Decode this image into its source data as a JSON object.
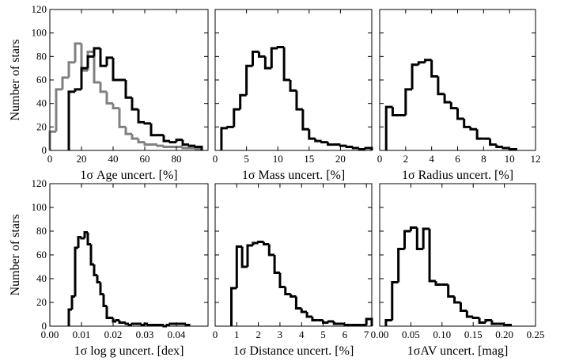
{
  "chart_data": [
    {
      "type": "histogram",
      "ylabel": "Number of stars",
      "xlabel": "1σ Age uncert. [%]",
      "xlim": [
        0,
        100
      ],
      "xticks": [
        0,
        20,
        40,
        60,
        80
      ],
      "ylim": [
        0,
        120
      ],
      "yticks": [
        0,
        20,
        40,
        60,
        80,
        100,
        120
      ],
      "ytick_labels": true,
      "series": [
        {
          "color": "#808080",
          "bins": [
            0,
            4,
            8,
            12,
            16,
            20,
            24,
            28,
            32,
            36,
            40,
            44,
            48,
            52,
            56,
            60,
            64,
            68,
            72,
            76,
            80,
            84,
            88,
            92,
            96
          ],
          "values": [
            16,
            52,
            62,
            75,
            91,
            68,
            84,
            58,
            50,
            40,
            36,
            20,
            14,
            10,
            7,
            5,
            5,
            4,
            3,
            3,
            3,
            2,
            2,
            1
          ]
        },
        {
          "color": "#000000",
          "bins": [
            12,
            16,
            20,
            24,
            28,
            32,
            36,
            40,
            44,
            48,
            52,
            56,
            60,
            64,
            68,
            72,
            76,
            80,
            84,
            88,
            92,
            96
          ],
          "values": [
            50,
            52,
            70,
            80,
            87,
            72,
            79,
            60,
            60,
            45,
            35,
            24,
            23,
            13,
            13,
            8,
            7,
            9,
            5,
            4,
            3
          ]
        }
      ]
    },
    {
      "type": "histogram",
      "xlabel": "1σ Mass uncert. [%]",
      "xlim": [
        0,
        25
      ],
      "xticks": [
        0,
        5,
        10,
        15,
        20
      ],
      "ylim": [
        0,
        120
      ],
      "yticks": [
        0,
        20,
        40,
        60,
        80,
        100,
        120
      ],
      "ytick_labels": false,
      "series": [
        {
          "color": "#000000",
          "bins": [
            1,
            2,
            3,
            4,
            5,
            6,
            7,
            8,
            9,
            10,
            11,
            12,
            13,
            14,
            15,
            16,
            17,
            18,
            19,
            20,
            21,
            22,
            23,
            24,
            25
          ],
          "values": [
            19,
            20,
            35,
            47,
            72,
            84,
            80,
            70,
            87,
            88,
            60,
            51,
            35,
            18,
            10,
            8,
            7,
            5,
            5,
            4,
            3,
            2,
            1,
            2
          ]
        }
      ]
    },
    {
      "type": "histogram",
      "xlabel": "1σ Radius uncert. [%]",
      "xlim": [
        0,
        12
      ],
      "xticks": [
        0,
        2,
        4,
        6,
        8,
        10,
        12
      ],
      "ylim": [
        0,
        120
      ],
      "yticks": [
        0,
        20,
        40,
        60,
        80,
        100,
        120
      ],
      "ytick_labels": false,
      "series": [
        {
          "color": "#000000",
          "bins": [
            0.5,
            1,
            1.5,
            2,
            2.5,
            3,
            3.5,
            4,
            4.5,
            5,
            5.5,
            6,
            6.5,
            7,
            7.5,
            8,
            8.5,
            9,
            9.5,
            10,
            10.5
          ],
          "values": [
            37,
            30,
            30,
            52,
            73,
            75,
            77,
            63,
            48,
            41,
            36,
            27,
            20,
            18,
            10,
            10,
            5,
            3,
            2,
            1
          ]
        }
      ]
    },
    {
      "type": "histogram",
      "ylabel": "Number of stars",
      "xlabel": "1σ log g uncert. [dex]",
      "xlim": [
        0,
        0.05
      ],
      "xticks": [
        {
          "value": 0,
          "label": "0.00"
        },
        {
          "value": 0.01,
          "label": "0.01"
        },
        {
          "value": 0.02,
          "label": "0.02"
        },
        {
          "value": 0.03,
          "label": "0.03"
        },
        {
          "value": 0.04,
          "label": "0.04"
        }
      ],
      "ylim": [
        0,
        120
      ],
      "yticks": [
        0,
        20,
        40,
        60,
        80,
        100,
        120
      ],
      "ytick_labels": true,
      "series": [
        {
          "color": "#000000",
          "bins": [
            0.006,
            0.007,
            0.008,
            0.009,
            0.01,
            0.011,
            0.012,
            0.013,
            0.014,
            0.015,
            0.016,
            0.017,
            0.018,
            0.019,
            0.02,
            0.021,
            0.022,
            0.023,
            0.024,
            0.025,
            0.026,
            0.027,
            0.028,
            0.029,
            0.03,
            0.031,
            0.032,
            0.033,
            0.034,
            0.035,
            0.036,
            0.037,
            0.038,
            0.039,
            0.04,
            0.041,
            0.042,
            0.043,
            0.044
          ],
          "values": [
            14,
            25,
            66,
            75,
            74,
            79,
            69,
            52,
            43,
            37,
            27,
            17,
            7,
            7,
            4,
            5,
            3,
            3,
            2,
            1,
            2,
            2,
            2,
            1,
            2,
            1,
            1,
            1,
            1,
            1,
            0,
            1,
            2,
            2,
            2,
            2,
            2,
            1
          ]
        }
      ]
    },
    {
      "type": "histogram",
      "xlabel": "1σ Distance uncert. [%]",
      "xlim": [
        0,
        7.25
      ],
      "xticks": [
        0,
        1,
        2,
        3,
        4,
        5,
        6,
        7
      ],
      "ylim": [
        0,
        120
      ],
      "yticks": [
        0,
        20,
        40,
        60,
        80,
        100,
        120
      ],
      "ytick_labels": false,
      "series": [
        {
          "color": "#000000",
          "bins": [
            0.75,
            1,
            1.25,
            1.5,
            1.75,
            2,
            2.25,
            2.5,
            2.75,
            3,
            3.25,
            3.5,
            3.75,
            4,
            4.25,
            4.5,
            4.75,
            5,
            5.25,
            5.5,
            5.75,
            6,
            6.25,
            6.5,
            6.75,
            7,
            7.25
          ],
          "values": [
            32,
            67,
            50,
            68,
            70,
            71,
            69,
            60,
            45,
            33,
            27,
            25,
            15,
            12,
            8,
            5,
            5,
            3,
            4,
            2,
            2,
            1,
            1,
            1,
            1,
            6
          ]
        }
      ]
    },
    {
      "type": "histogram",
      "xlabel": "1σAV uncert. [mag]",
      "xlim": [
        0,
        0.25
      ],
      "xticks": [
        {
          "value": 0,
          "label": "0.00"
        },
        {
          "value": 0.05,
          "label": "0.05"
        },
        {
          "value": 0.1,
          "label": "0.10"
        },
        {
          "value": 0.15,
          "label": "0.15"
        },
        {
          "value": 0.2,
          "label": "0.20"
        },
        {
          "value": 0.25,
          "label": "0.25"
        }
      ],
      "ylim": [
        0,
        120
      ],
      "yticks": [
        0,
        20,
        40,
        60,
        80,
        100,
        120
      ],
      "ytick_labels": false,
      "series": [
        {
          "color": "#000000",
          "bins": [
            0.01,
            0.02,
            0.03,
            0.04,
            0.05,
            0.06,
            0.07,
            0.08,
            0.09,
            0.1,
            0.11,
            0.12,
            0.13,
            0.14,
            0.15,
            0.16,
            0.17,
            0.18,
            0.19,
            0.2,
            0.21
          ],
          "values": [
            5,
            37,
            65,
            80,
            83,
            65,
            82,
            38,
            35,
            35,
            25,
            20,
            13,
            8,
            7,
            3,
            5,
            2,
            2,
            1
          ]
        }
      ]
    }
  ]
}
